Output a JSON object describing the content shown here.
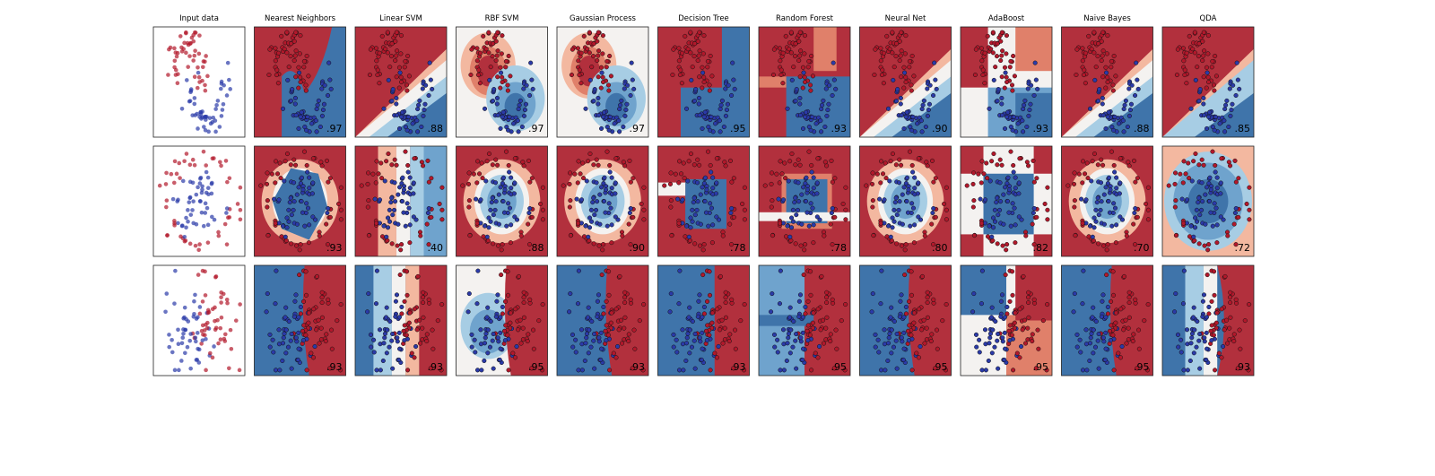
{
  "chart_data": {
    "type": "scatter",
    "layout": {
      "rows": 3,
      "cols": 11
    },
    "colors": {
      "class_red": "#b2182b",
      "class_blue": "#2b3aa8",
      "colormap": "RdBu"
    },
    "columns": [
      "Input data",
      "Nearest Neighbors",
      "Linear SVM",
      "RBF SVM",
      "Gaussian Process",
      "Decision Tree",
      "Random Forest",
      "Neural Net",
      "AdaBoost",
      "Naive Bayes",
      "QDA"
    ],
    "datasets": [
      "moons",
      "circles",
      "linear"
    ],
    "scores": [
      [
        "",
        ".97",
        ".88",
        ".97",
        ".97",
        ".95",
        ".93",
        ".90",
        ".93",
        ".88",
        ".85"
      ],
      [
        "",
        ".93",
        ".40",
        ".88",
        ".90",
        ".78",
        ".78",
        ".80",
        ".82",
        ".70",
        ".72"
      ],
      [
        "",
        ".93",
        ".93",
        ".95",
        ".93",
        ".93",
        ".95",
        ".95",
        ".95",
        ".95",
        ".93"
      ]
    ],
    "grid": false
  }
}
